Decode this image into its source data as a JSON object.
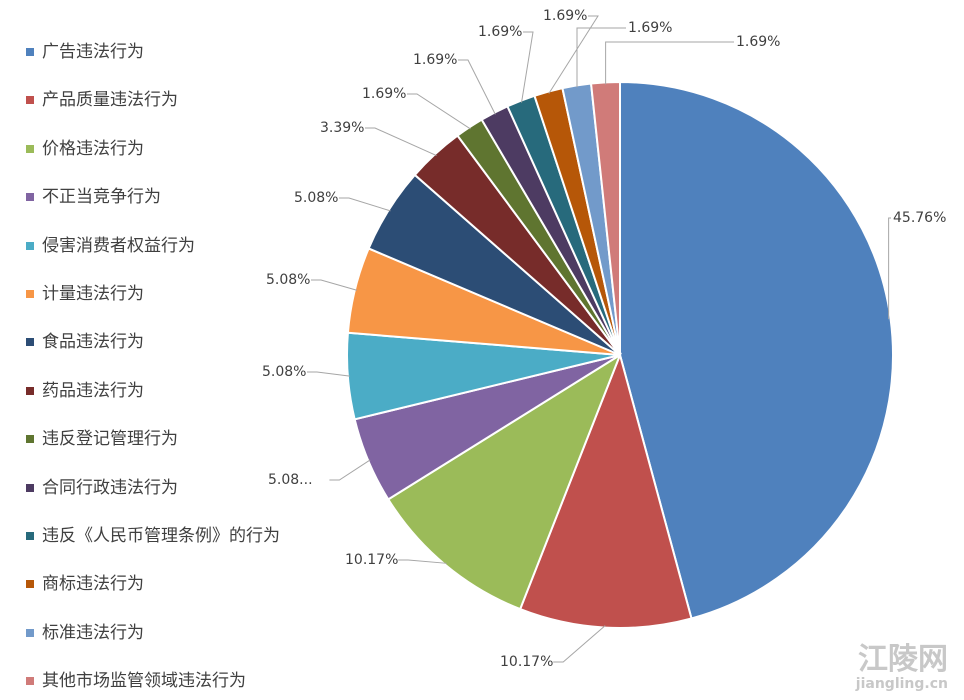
{
  "chart_data": {
    "type": "pie",
    "categories": [
      "广告违法行为",
      "产品质量违法行为",
      "价格违法行为",
      "不正当竞争行为",
      "侵害消费者权益行为",
      "计量违法行为",
      "食品违法行为",
      "药品违法行为",
      "违反登记管理行为",
      "合同行政违法行为",
      "违反《人民币管理条例》的行为",
      "商标违法行为",
      "标准违法行为",
      "其他市场监管领域违法行为"
    ],
    "values": [
      45.76,
      10.17,
      10.17,
      5.08,
      5.08,
      5.08,
      5.08,
      3.39,
      1.69,
      1.69,
      1.69,
      1.69,
      1.69,
      1.69
    ],
    "value_labels": [
      "45.76%",
      "10.17%",
      "10.17%",
      "5.08...",
      "5.08%",
      "5.08%",
      "5.08%",
      "3.39%",
      "1.69%",
      "1.69%",
      "1.69%",
      "1.69%",
      "1.69%",
      "1.69%"
    ],
    "colors": [
      "#4f81bd",
      "#c0504d",
      "#9bbb59",
      "#8064a2",
      "#4bacc6",
      "#f79646",
      "#2c4d75",
      "#772c2a",
      "#5f7530",
      "#4d3b62",
      "#276a7c",
      "#b65708",
      "#729aca",
      "#d07b79"
    ],
    "legend": "left"
  },
  "watermark": {
    "title": "江陵网",
    "url": "jiangling.cn"
  }
}
